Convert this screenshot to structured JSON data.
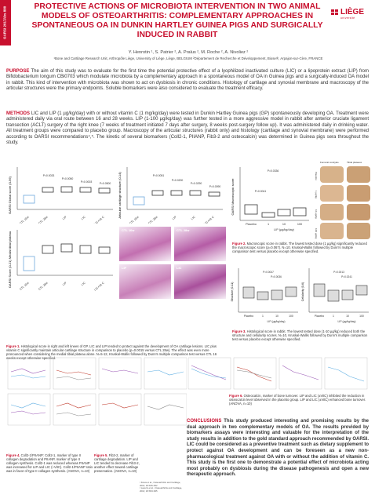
{
  "side_tag": {
    "line1": "OARSI 2017",
    "line2": "Abs 880"
  },
  "title": "PROTECTIVE ACTIONS OF MICROBIOTA INTERVENTION IN TWO ANIMAL MODELS OF OSTEOARTHRITIS: COMPLEMENTARY APPROACHES IN SPONTANEOUS OA IN DUNKIN HARTLEY GUINEA PIGS AND SURGICALLY INDUCED IN RABBIT",
  "logo": {
    "name": "LIÈGE",
    "sub": "université"
  },
  "authors": "Y. Henrotin ¹, S. Patrier ², A. Pralus ², M. Roche ², A. Nivoliez ²",
  "affiliations": "¹Bone and Cartilage Research Unit, Arthropôle Liège, University of Liège, Liège, BELGIUM ²Département de Recherche et Développement, Biose®, Arpajon-sur-Cère, FRANCE",
  "purpose": {
    "heading": "PURPOSE",
    "text": "The aim of this study was to evaluate for the first time the potential protective effect of a lyophilized inactivated culture (LIC) or a lipoprotein extract (LIP) from Bifidobacterium longum CBi0703 which modulate microbiota by a complementary approach in a spontaneous model of OA in Guinea pigs and a surgically-induced OA model in rabbit. This kind of intervention with microbiota was shown to act on dysbiosis in chronic conditions. Histology of cartilage and synovial membrane and macroscopy of the articular structures were the primary endpoints. Soluble biomarkers were also considered to evaluate the treatment efficacy."
  },
  "methods": {
    "heading": "METHODS",
    "text": "LIC and LIP (1 µg/kg/day) with or without vitamin C (1 mg/kg/day) were tested in Dunkin Hartley Guinea pigs (GP) spontaneously developing OA. Treatment were administered daily via oral route between 16 and 28 weeks. LIP (1-100 µg/kg/day) was further tested in a more aggressive model in rabbit after anterior cruciate ligament transection (ACLT) surgery of the right knee (7 weeks of treatment initiated 7 days after surgery, 8 weeks post-surgery follow up). It was administered daily in drinking water. All treatment groups were compared to placebo group. Macroscopy of the articular structures (rabbit only) and histology (cartilage and synovial membrane) were performed according to OARSI recommendations⁴,⁵. The kinetic of several biomarkers (Coll2-1, PIIANP, Fib3-2 and osteocalcin) was determined in Guinea pigs sera throughout the study."
  },
  "fig1": {
    "panelA": {
      "ylabel": "OARSI Global score (0-56)",
      "categories": [
        "CTL 16w",
        "CTL 28w",
        "LIP",
        "LIC",
        "LIC+Vit C"
      ],
      "pvals": [
        "P=0.0033",
        "P=0.0050",
        "P=0.0003",
        "P=0.0500"
      ]
    },
    "panelB": {
      "ylabel": "Articular cartilage structure (0-14)",
      "categories": [
        "CTL 16w",
        "CTL 28w",
        "LIP",
        "LIC",
        "LIC+Vit C"
      ],
      "pvals": [
        "P=0.0051",
        "P=0.0200",
        "P=0.0290",
        "P=0.0090"
      ]
    },
    "panelC": {
      "ylabel": "OARSI Score (0-21) Medial tibial plateau",
      "categories": [
        "CTL 16w",
        "CTL 28w",
        "LIP",
        "LIC",
        "LIC+Vit C"
      ]
    },
    "micro_labels": [
      "CTL 16w",
      "CTL 28w",
      "LIP",
      "LIC"
    ],
    "caption_bold": "Figure 1.",
    "caption": " Histological score in right and left knees of GP. LIC and LIP tended to protect against the development of OA cartilage lesions. LIC plus vitamin C significantly maintain articular cartilage structure in comparison to placebo (p=0.0015 versus CTL 28w). The effect was even more pronounced when considering the medial tibial plateau alone. N=5-12, Kruskal-Wallis followed by Dunn's multiple comparison test versus CTL 16 weeks except otherwise specified."
  },
  "fig2": {
    "ylabel": "OARSI Macroscopic score",
    "xlabel": "LIP (µg/kg/day)",
    "categories": [
      "Placebo",
      "1",
      "10",
      "100"
    ],
    "pvals": [
      "P=0.0336",
      "P=0.0041"
    ],
    "photo_headers": [
      "Femoral condyles",
      "Tibial plateaux"
    ],
    "photo_rows": [
      "Placebo",
      "1 µg/kg",
      "10 µg/kg",
      "100 µg/kg"
    ],
    "caption_bold": "Figure 2.",
    "caption": " Macroscopic score in rabbit. The lowest tested dose (1 µg/kg) significantly reduced the macroscopic score (p=0.067). N=10, Kruskal-Wallis followed by Dunn's multiple comparison test versus placebo except otherwise specified."
  },
  "fig3": {
    "left": {
      "ylabel": "Structure (0-11)",
      "xlabel": "LIP (µg/kg/day)",
      "categories": [
        "Placebo",
        "1",
        "10",
        "100"
      ],
      "pvals": [
        "P=0.0047",
        "P=0.0036"
      ]
    },
    "right": {
      "ylabel": "Cellularity (0-6)",
      "xlabel": "LIP (µg/kg/day)",
      "categories": [
        "Placebo",
        "1",
        "10",
        "100"
      ],
      "pvals": [
        "P=0.0013",
        "P=0.0241"
      ]
    },
    "caption_bold": "Figure 3.",
    "caption": " Histological score in rabbit. The lowest tested dose (1-10 µg/kg) reduced both the structure and cellularity scores. N=10, Kruskal-Wallis followed by Dunn's multiple comparison test versus placebo except otherwise specified."
  },
  "fig4": {
    "caption_bold": "Figure 4.",
    "caption": " Coll2-1/PIIANP: Coll2-1, marker of type II collagen degradation and PIIANP, marker of type II collagen synthesis. Coll2-1 was reduced whereas PIIANP was increased for LIP and LIC (+VitC). Coll2-1/PIIANP ratio was in favor of type II collagen synthesis. (ANOVA, n=10)"
  },
  "fig5": {
    "caption_bold": "Figure 5.",
    "caption": " Fib3-2, marker of cartilage degradation. LIP and LIC tended to decrease Fib3-2, another effect toward cartilage preservation. (ANOVA, n=10)"
  },
  "fig6": {
    "caption_bold": "Figure 6.",
    "caption": " Osteocalcin, marker of bone turnover. LIP and LIC (±VitC) inhibited the reduction in osteocalcin level observed in the placebo group. LIP and LIC (±VitC) enhanced bone turnover. (ANOVA, n=10)"
  },
  "conclusions": {
    "heading": "CONCLUSIONS",
    "text": "This study produced interesting and promising results by the dual approach in two complementary models of OA. The results provided by biomarkers assays were interesting and valuable for the interpretation of the study results in addition to the gold standard approach recommended by OARSI. LIC could be considered as a preventive treatment such as dietary supplement to protect against OA development and can be foreseen as a new non-pharmacological treatment against OA with or without the addition of vitamin C. This study is the first one to demonstrate a potential effect of microbiota acting most probably on dysbiosis during the disease pathogenesis and open a new therapeutic approach."
  },
  "references": [
    "¹ Kraus et al., Osteoarthritis and Cartilage, 2010; 18:S35-S52",
    "² Laverty et al., Osteoarthritis and Cartilage, 2010; 18:S53-S65"
  ],
  "colors": {
    "accent": "#c8102e",
    "box": "#ffffff",
    "blue_box": "#6fa8dc"
  }
}
